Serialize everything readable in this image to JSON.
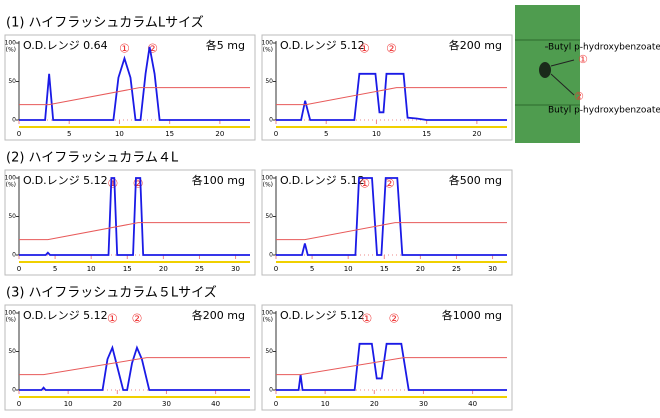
{
  "sections": [
    {
      "title": "(1) ハイフラッシュカラムLサイズ"
    },
    {
      "title": "(2) ハイフラッシュカラム４L"
    },
    {
      "title": "(3) ハイフラッシュカラム５Lサイズ"
    }
  ],
  "image": {
    "labels": [
      "Butyl p-hydroxybenzoate",
      "①",
      "②",
      "Butyl p-hydroxybenzoate"
    ]
  },
  "chart_data": [
    {
      "type": "line",
      "title": "O.D.レンジ 0.64",
      "subtitle": "各5 mg",
      "xlim": [
        0,
        23
      ],
      "xticks": [
        0,
        5,
        10,
        15,
        20
      ],
      "ylim": [
        0,
        100
      ],
      "yticks": [
        0,
        50,
        100
      ],
      "ylabel": "(%)",
      "annotations": [
        {
          "text": "①",
          "x": 10.5
        },
        {
          "text": "②",
          "x": 13.3
        }
      ],
      "series": [
        {
          "color": "#1a1ae6",
          "x": [
            0,
            2.6,
            3,
            3.4,
            9.4,
            9.9,
            10.5,
            11.1,
            11.6,
            12.1,
            12.6,
            13,
            13.5,
            14,
            23
          ],
          "values": [
            0,
            0,
            60,
            0,
            0,
            55,
            80,
            55,
            0,
            0,
            60,
            95,
            60,
            0,
            0
          ]
        },
        {
          "color": "#e85a5a",
          "x": [
            0,
            3,
            12,
            23
          ],
          "values": [
            20,
            20,
            42,
            42
          ]
        }
      ]
    },
    {
      "type": "line",
      "title": "O.D.レンジ 5.12",
      "subtitle": "各200 mg",
      "xlim": [
        0,
        23
      ],
      "xticks": [
        0,
        5,
        10,
        15,
        20
      ],
      "ylim": [
        0,
        100
      ],
      "yticks": [
        0,
        50,
        100
      ],
      "ylabel": "(%)",
      "annotations": [
        {
          "text": "①",
          "x": 8.8
        },
        {
          "text": "②",
          "x": 11.5
        }
      ],
      "series": [
        {
          "color": "#1a1ae6",
          "x": [
            0,
            2.5,
            2.9,
            3.4,
            7.8,
            8.3,
            9.9,
            10.3,
            10.7,
            11,
            12.7,
            13.1,
            14,
            15,
            23
          ],
          "values": [
            0,
            0,
            25,
            0,
            0,
            60,
            60,
            10,
            10,
            60,
            60,
            3,
            2,
            0,
            0
          ]
        },
        {
          "color": "#e85a5a",
          "x": [
            0,
            3,
            12,
            23
          ],
          "values": [
            20,
            20,
            42,
            42
          ]
        }
      ]
    },
    {
      "type": "line",
      "title": "O.D.レンジ 5.12",
      "subtitle": "各100 mg",
      "xlim": [
        0,
        32
      ],
      "xticks": [
        0,
        5,
        10,
        15,
        20,
        25,
        30
      ],
      "ylim": [
        0,
        100
      ],
      "yticks": [
        0,
        50,
        100
      ],
      "ylabel": "(%)",
      "annotations": [
        {
          "text": "①",
          "x": 13
        },
        {
          "text": "②",
          "x": 16.5
        }
      ],
      "series": [
        {
          "color": "#1a1ae6",
          "x": [
            0,
            3.7,
            4,
            4.3,
            12.4,
            12.8,
            13.2,
            13.6,
            15.8,
            16.2,
            16.8,
            17.2,
            32
          ],
          "values": [
            0,
            0,
            3,
            0,
            0,
            100,
            100,
            0,
            0,
            100,
            100,
            0,
            0
          ]
        },
        {
          "color": "#e85a5a",
          "x": [
            0,
            4,
            16.5,
            32
          ],
          "values": [
            20,
            20,
            42,
            42
          ]
        }
      ]
    },
    {
      "type": "line",
      "title": "O.D.レンジ 5.12",
      "subtitle": "各500 mg",
      "xlim": [
        0,
        32
      ],
      "xticks": [
        0,
        5,
        10,
        15,
        20,
        25,
        30
      ],
      "ylim": [
        0,
        100
      ],
      "yticks": [
        0,
        50,
        100
      ],
      "ylabel": "(%)",
      "annotations": [
        {
          "text": "①",
          "x": 12.3
        },
        {
          "text": "②",
          "x": 15.7
        }
      ],
      "series": [
        {
          "color": "#1a1ae6",
          "x": [
            0,
            3.6,
            4,
            4.4,
            11,
            11.5,
            13.3,
            14,
            14.6,
            15.2,
            16.8,
            17.5,
            32
          ],
          "values": [
            0,
            0,
            15,
            0,
            0,
            100,
            100,
            0,
            0,
            100,
            100,
            0,
            0
          ]
        },
        {
          "color": "#e85a5a",
          "x": [
            0,
            4,
            16.5,
            32
          ],
          "values": [
            20,
            20,
            42,
            42
          ]
        }
      ]
    },
    {
      "type": "line",
      "title": "O.D.レンジ 5.12",
      "subtitle": "各200 mg",
      "xlim": [
        0,
        47
      ],
      "xticks": [
        0,
        10,
        20,
        30,
        40
      ],
      "ylim": [
        0,
        100
      ],
      "yticks": [
        0,
        50,
        100
      ],
      "ylabel": "(%)",
      "annotations": [
        {
          "text": "①",
          "x": 19
        },
        {
          "text": "②",
          "x": 24
        }
      ],
      "series": [
        {
          "color": "#1a1ae6",
          "x": [
            0,
            4.6,
            5,
            5.4,
            17,
            18,
            19,
            20,
            21.2,
            22,
            23,
            24,
            25,
            26.5,
            47
          ],
          "values": [
            0,
            0,
            3,
            0,
            0,
            40,
            55,
            30,
            0,
            0,
            35,
            55,
            40,
            0,
            0
          ]
        },
        {
          "color": "#e85a5a",
          "x": [
            0,
            5,
            26,
            47
          ],
          "values": [
            20,
            20,
            42,
            42
          ]
        }
      ]
    },
    {
      "type": "line",
      "title": "O.D.レンジ 5.12",
      "subtitle": "各1000 mg",
      "xlim": [
        0,
        47
      ],
      "xticks": [
        0,
        10,
        20,
        30,
        40
      ],
      "ylim": [
        0,
        100
      ],
      "yticks": [
        0,
        50,
        100
      ],
      "ylabel": "(%)",
      "annotations": [
        {
          "text": "①",
          "x": 18.5
        },
        {
          "text": "②",
          "x": 24
        }
      ],
      "series": [
        {
          "color": "#1a1ae6",
          "x": [
            0,
            4.6,
            5,
            5.4,
            16,
            17,
            19.5,
            20.5,
            21.5,
            22.5,
            25.5,
            27,
            47
          ],
          "values": [
            0,
            0,
            20,
            0,
            0,
            60,
            60,
            15,
            15,
            60,
            60,
            0,
            0
          ]
        },
        {
          "color": "#e85a5a",
          "x": [
            0,
            5,
            26,
            47
          ],
          "values": [
            20,
            20,
            42,
            42
          ]
        }
      ]
    }
  ]
}
